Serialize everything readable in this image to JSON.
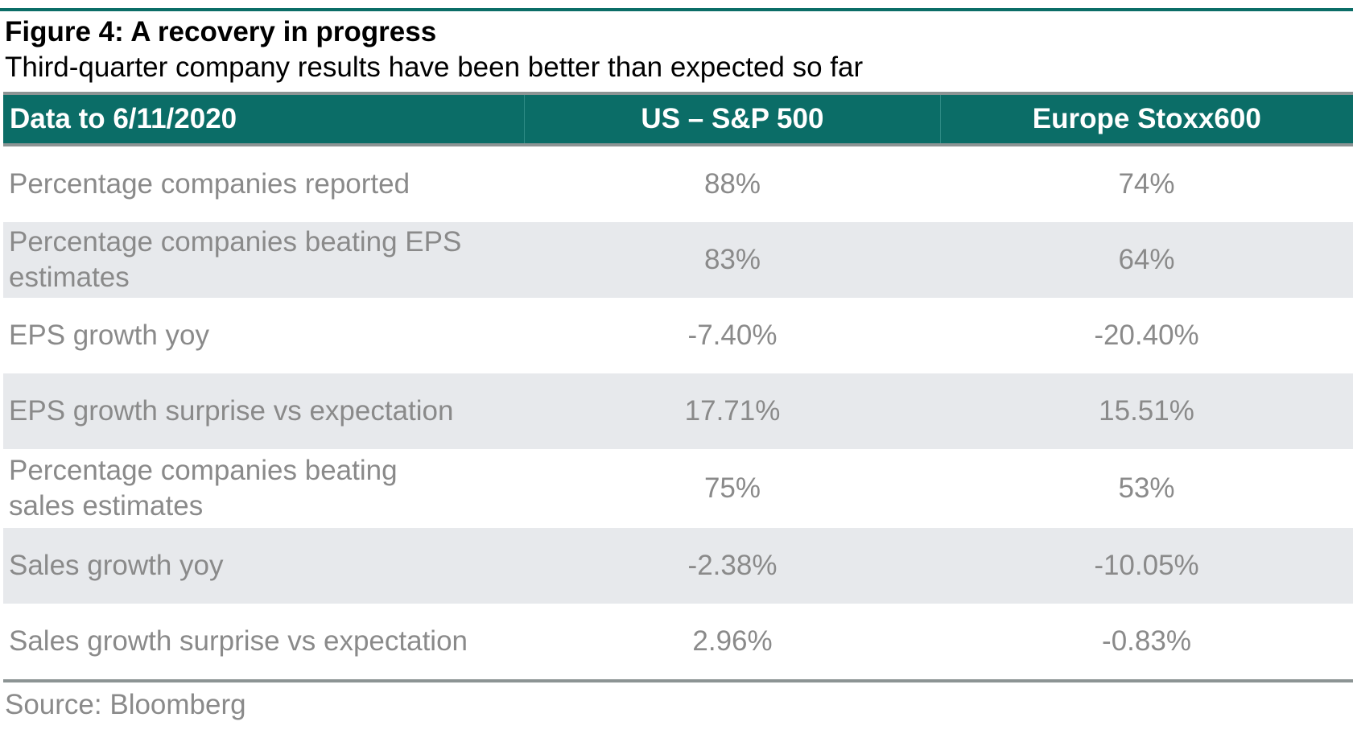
{
  "figure": {
    "title": "Figure 4: A recovery in progress",
    "subtitle": "Third-quarter company results have been better than expected so far"
  },
  "table": {
    "headers": [
      "Data to 6/11/2020",
      "US – S&P 500",
      "Europe Stoxx600"
    ],
    "rows": [
      {
        "label": "Percentage companies reported",
        "us": "88%",
        "europe": "74%"
      },
      {
        "label": "Percentage companies beating EPS estimates",
        "us": "83%",
        "europe": "64%"
      },
      {
        "label": "EPS growth yoy",
        "us": "-7.40%",
        "europe": "-20.40%"
      },
      {
        "label": "EPS growth surprise vs expectation",
        "us": "17.71%",
        "europe": "15.51%"
      },
      {
        "label": "Percentage companies beating sales estimates",
        "us": "75%",
        "europe": "53%"
      },
      {
        "label": "Sales growth yoy",
        "us": "-2.38%",
        "europe": "-10.05%"
      },
      {
        "label": "Sales growth surprise vs expectation",
        "us": "2.96%",
        "europe": "-0.83%"
      }
    ]
  },
  "source": "Source: Bloomberg",
  "colors": {
    "header_bg": "#0b6d67",
    "alt_row_bg": "#e7e9ec",
    "body_text": "#8a8a8a"
  }
}
